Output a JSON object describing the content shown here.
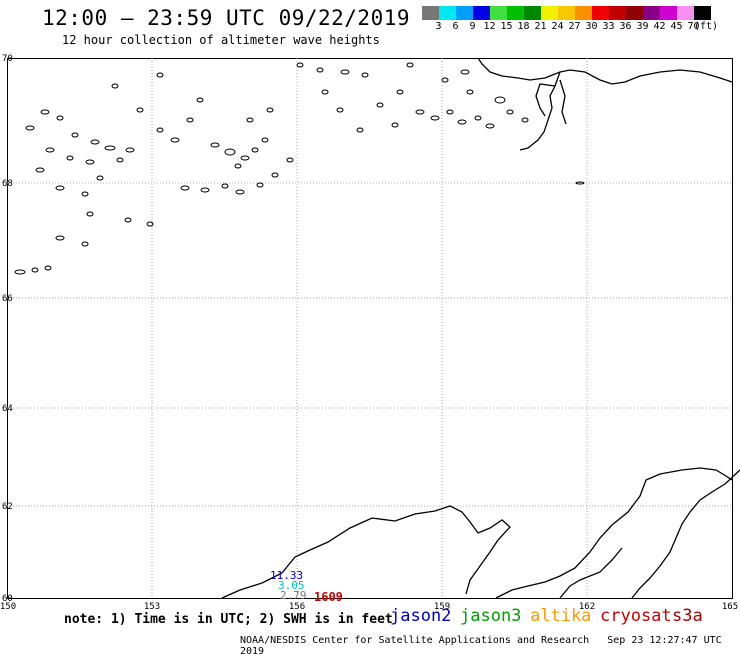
{
  "title": "12:00 – 23:59 UTC 09/22/2019",
  "subtitle": "12 hour collection of altimeter wave heights",
  "colorbar": {
    "colors": [
      "#777777",
      "#00e8f0",
      "#00a0f8",
      "#0000e8",
      "#40e040",
      "#00c000",
      "#008800",
      "#f0f000",
      "#f8c800",
      "#f89000",
      "#f00000",
      "#c00000",
      "#900000",
      "#880088",
      "#d000d0",
      "#f890f0",
      "#000000"
    ],
    "labels": [
      "3",
      "6",
      "9",
      "12",
      "15",
      "18",
      "21",
      "24",
      "27",
      "30",
      "33",
      "36",
      "39",
      "42",
      "45",
      "70",
      "(ft)"
    ]
  },
  "lat_labels": [
    "70",
    "68",
    "66",
    "64",
    "62",
    "60"
  ],
  "lon_labels": [
    "150",
    "153",
    "156",
    "159",
    "162",
    "165"
  ],
  "swh_values": {
    "jason2": "11.33",
    "jason3": "3.05",
    "gray": "2.79"
  },
  "pass_time": "1609",
  "note": "note: 1) Time is in UTC; 2) SWH is in feet",
  "satellites": [
    {
      "name": "jason2",
      "color": "#0000cc"
    },
    {
      "name": "jason3",
      "color": "#00a000"
    },
    {
      "name": "altika",
      "color": "#ff9900"
    },
    {
      "name": "cryosat",
      "color": "#cc0000"
    },
    {
      "name": "s3a",
      "color": "#aa0000"
    }
  ],
  "credit": "NOAA/NESDIS Center for Satellite Applications and Research",
  "timestamp": "Sep 23 12:27:47 UTC 2019"
}
